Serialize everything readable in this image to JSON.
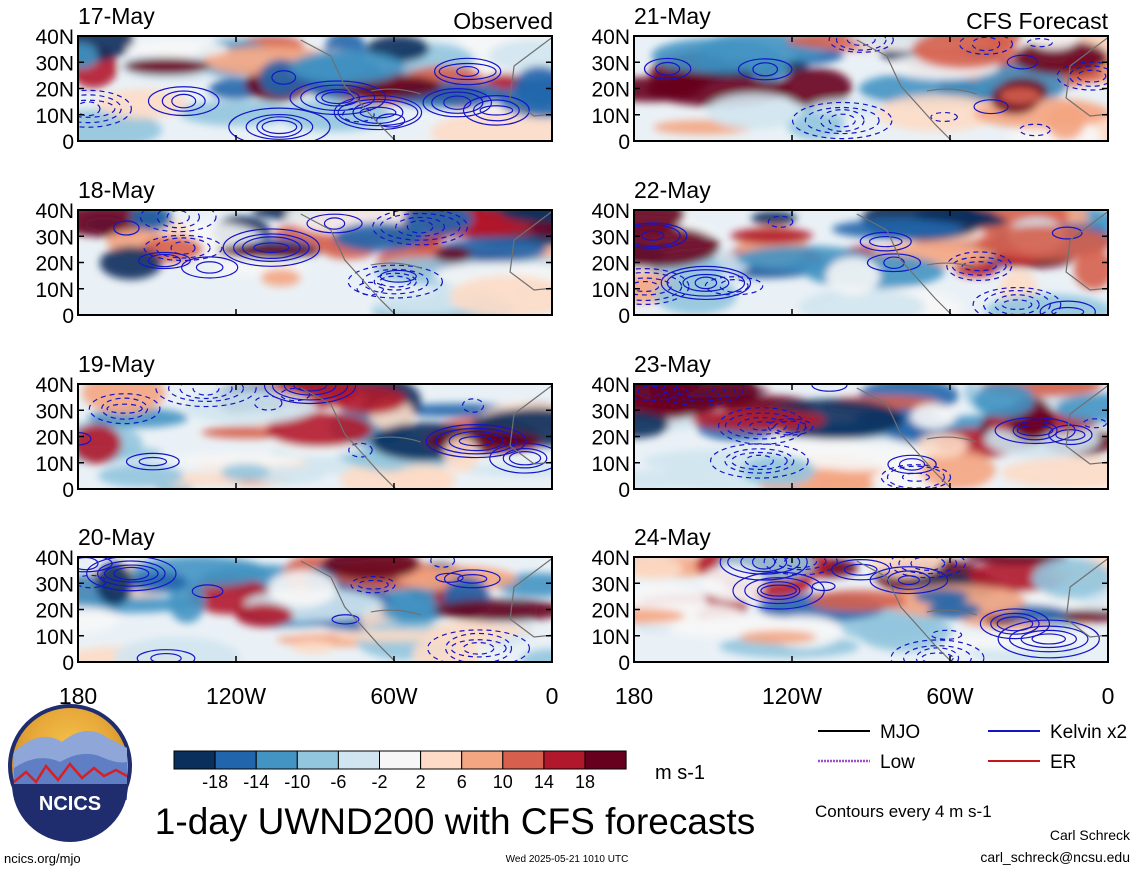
{
  "header": {
    "observed_label": "Observed",
    "forecast_label": "CFS Forecast"
  },
  "chart_data": {
    "type": "heatmap",
    "variable": "UWND200",
    "units": "m s-1",
    "x_ticks": [
      "180",
      "120W",
      "60W",
      "0"
    ],
    "y_ticks": [
      "40N",
      "30N",
      "20N",
      "10N",
      "0"
    ],
    "xlim": [
      -180,
      0
    ],
    "ylim": [
      0,
      40
    ],
    "color_scale": {
      "levels": [
        -18,
        -14,
        -10,
        -6,
        -2,
        2,
        6,
        10,
        14,
        18
      ],
      "labels": [
        "-18",
        "-14",
        "-10",
        "-6",
        "-2",
        "2",
        "6",
        "10",
        "14",
        "18"
      ],
      "colors": [
        "#0a2f5c",
        "#2166ac",
        "#4393c3",
        "#92c5de",
        "#d1e5f0",
        "#f7f7f7",
        "#fddbc7",
        "#f4a582",
        "#d6604d",
        "#b2182b",
        "#67001f"
      ]
    },
    "panels": [
      {
        "date": "17-May",
        "kind": "observed"
      },
      {
        "date": "18-May",
        "kind": "observed"
      },
      {
        "date": "19-May",
        "kind": "observed"
      },
      {
        "date": "20-May",
        "kind": "observed"
      },
      {
        "date": "21-May",
        "kind": "forecast"
      },
      {
        "date": "22-May",
        "kind": "forecast"
      },
      {
        "date": "23-May",
        "kind": "forecast"
      },
      {
        "date": "24-May",
        "kind": "forecast"
      }
    ],
    "contour_legend": [
      {
        "name": "MJO",
        "color": "#000000"
      },
      {
        "name": "Kelvin x2",
        "color": "#1515c8"
      },
      {
        "name": "Low",
        "color": "#a050c8"
      },
      {
        "name": "ER",
        "color": "#c81515"
      }
    ],
    "contour_interval_text": "Contours every 4 m s-1"
  },
  "footer": {
    "title": "1-day UWND200 with CFS forecasts",
    "units": "m s-1",
    "contour_note": "Contours every 4 m s-1",
    "link": "ncics.org/mjo",
    "timestamp": "Wed 2025-05-21 1010 UTC",
    "author": "Carl Schreck",
    "email": "carl_schreck@ncsu.edu",
    "logo_text": "NCICS"
  }
}
